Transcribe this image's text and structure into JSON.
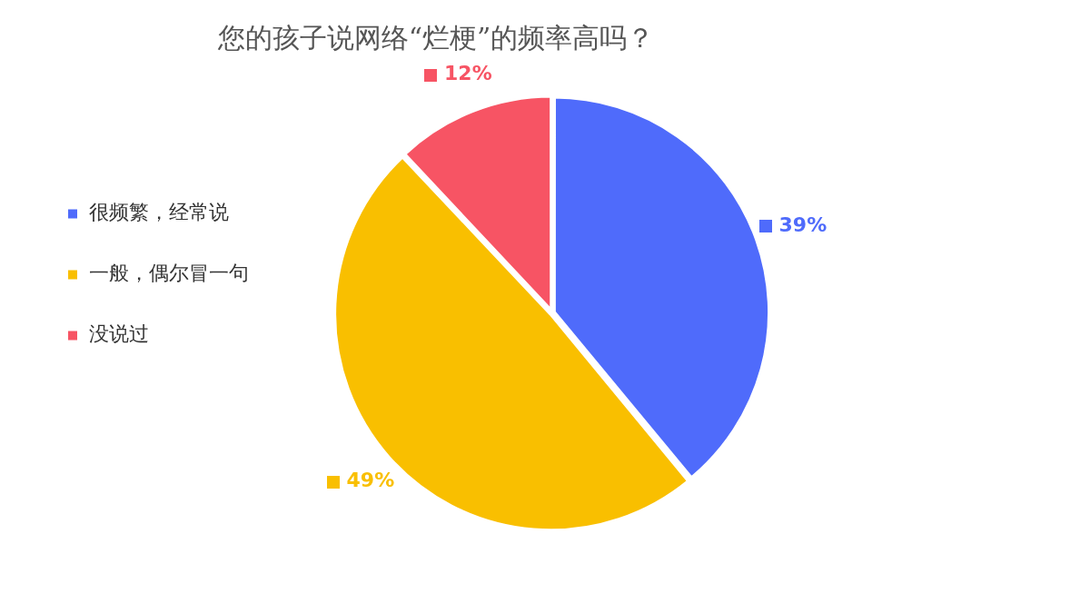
{
  "chart_data": {
    "type": "pie",
    "title": "您的孩子说网络“烂梗”的频率高吗？",
    "categories": [
      "很频繁，经常说",
      "一般，偶尔冒一句",
      "没说过"
    ],
    "values": [
      39,
      49,
      12
    ],
    "colors": [
      "#4f6bfb",
      "#f9bf00",
      "#f75464"
    ],
    "value_labels": [
      "39%",
      "49%",
      "12%"
    ],
    "legend": "left"
  }
}
